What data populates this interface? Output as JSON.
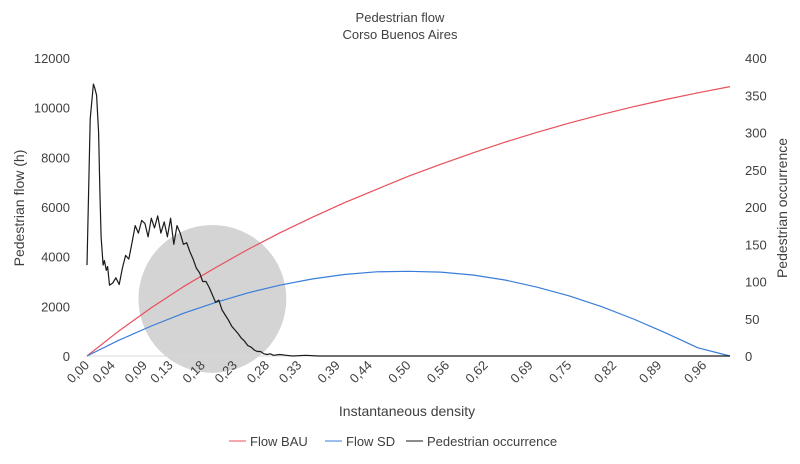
{
  "chart_data": {
    "type": "line",
    "title": "Pedestrian flow",
    "subtitle": "Corso Buenos Aires",
    "xlabel": "Instantaneous density",
    "ylabel_left": "Pedestrian flow (h)",
    "ylabel_right": "Pedestrian occurrence",
    "x_range": [
      0,
      1.0
    ],
    "x_ticks": [
      "0,00",
      "0,04",
      "0,09",
      "0,13",
      "0,18",
      "0,23",
      "0,28",
      "0,33",
      "0,39",
      "0,44",
      "0,50",
      "0,56",
      "0,62",
      "0,69",
      "0,75",
      "0,82",
      "0,89",
      "0,96"
    ],
    "x_tick_values": [
      0.0,
      0.04,
      0.09,
      0.13,
      0.18,
      0.23,
      0.28,
      0.33,
      0.39,
      0.44,
      0.5,
      0.56,
      0.62,
      0.69,
      0.75,
      0.82,
      0.89,
      0.96
    ],
    "y_left": {
      "range": [
        0,
        12000
      ],
      "ticks": [
        "0",
        "2000",
        "4000",
        "6000",
        "8000",
        "10000",
        "12000"
      ],
      "tick_values": [
        0,
        2000,
        4000,
        6000,
        8000,
        10000,
        12000
      ]
    },
    "y_right": {
      "range": [
        0,
        400
      ],
      "ticks": [
        "0",
        "50",
        "100",
        "150",
        "200",
        "250",
        "300",
        "350",
        "400"
      ],
      "tick_values": [
        0,
        50,
        100,
        150,
        200,
        250,
        300,
        350,
        400
      ]
    },
    "grid": false,
    "legend_position": "bottom",
    "series": [
      {
        "name": "Flow BAU",
        "axis": "left",
        "color": "#e8505b",
        "x": [
          0.0,
          0.05,
          0.1,
          0.15,
          0.2,
          0.25,
          0.3,
          0.35,
          0.4,
          0.45,
          0.5,
          0.55,
          0.6,
          0.65,
          0.7,
          0.75,
          0.8,
          0.85,
          0.9,
          0.95,
          1.0
        ],
        "values": [
          0,
          1020,
          1940,
          2790,
          3560,
          4290,
          4960,
          5580,
          6170,
          6710,
          7240,
          7720,
          8180,
          8610,
          9010,
          9380,
          9720,
          10040,
          10330,
          10600,
          10850
        ]
      },
      {
        "name": "Flow SD",
        "axis": "left",
        "color": "#3a7dd8",
        "x": [
          0.0,
          0.05,
          0.1,
          0.15,
          0.2,
          0.25,
          0.3,
          0.35,
          0.4,
          0.45,
          0.5,
          0.55,
          0.6,
          0.65,
          0.7,
          0.75,
          0.8,
          0.85,
          0.9,
          0.95,
          1.0
        ],
        "values": [
          0,
          640,
          1210,
          1720,
          2160,
          2540,
          2850,
          3100,
          3280,
          3390,
          3410,
          3380,
          3260,
          3060,
          2770,
          2420,
          1990,
          1490,
          930,
          330,
          0
        ]
      },
      {
        "name": "Pedestrian occurrence",
        "axis": "right",
        "color": "#1a1a1a",
        "x": [
          0.0,
          0.005,
          0.01,
          0.012,
          0.015,
          0.018,
          0.02,
          0.022,
          0.025,
          0.027,
          0.03,
          0.032,
          0.035,
          0.04,
          0.045,
          0.05,
          0.055,
          0.06,
          0.065,
          0.07,
          0.075,
          0.08,
          0.085,
          0.09,
          0.095,
          0.1,
          0.105,
          0.11,
          0.115,
          0.12,
          0.125,
          0.13,
          0.135,
          0.14,
          0.145,
          0.15,
          0.155,
          0.16,
          0.165,
          0.17,
          0.175,
          0.18,
          0.185,
          0.19,
          0.195,
          0.2,
          0.205,
          0.21,
          0.215,
          0.22,
          0.225,
          0.23,
          0.235,
          0.24,
          0.245,
          0.25,
          0.255,
          0.26,
          0.265,
          0.27,
          0.275,
          0.28,
          0.285,
          0.29,
          0.3,
          0.31,
          0.32,
          0.34,
          0.36,
          0.4,
          0.45,
          0.5,
          0.55,
          0.6,
          0.65,
          0.7,
          0.75,
          0.8,
          0.85,
          0.9,
          0.95,
          1.0
        ],
        "values": [
          122,
          318,
          365,
          360,
          350,
          300,
          220,
          160,
          122,
          128,
          115,
          120,
          95,
          98,
          105,
          96,
          118,
          135,
          130,
          152,
          175,
          165,
          182,
          178,
          160,
          185,
          172,
          188,
          165,
          180,
          160,
          185,
          150,
          175,
          165,
          150,
          152,
          140,
          130,
          118,
          112,
          100,
          100,
          92,
          82,
          72,
          75,
          62,
          55,
          48,
          40,
          35,
          30,
          24,
          20,
          14,
          12,
          8,
          6,
          6,
          3,
          2,
          3,
          1,
          2,
          1,
          0,
          1,
          0,
          0,
          0,
          0,
          0,
          0,
          0,
          0,
          0,
          0,
          0,
          0,
          0,
          0
        ]
      }
    ],
    "annotation": {
      "shape": "circle",
      "color": "#d4d4d4",
      "center_x": 0.195,
      "center_y_left": 2300,
      "radius_x": 0.115
    }
  },
  "legend": {
    "items": [
      {
        "label": "Flow BAU",
        "color": "#e8505b"
      },
      {
        "label": "Flow SD",
        "color": "#3a7dd8"
      },
      {
        "label": "Pedestrian occurrence",
        "color": "#1a1a1a"
      }
    ]
  }
}
